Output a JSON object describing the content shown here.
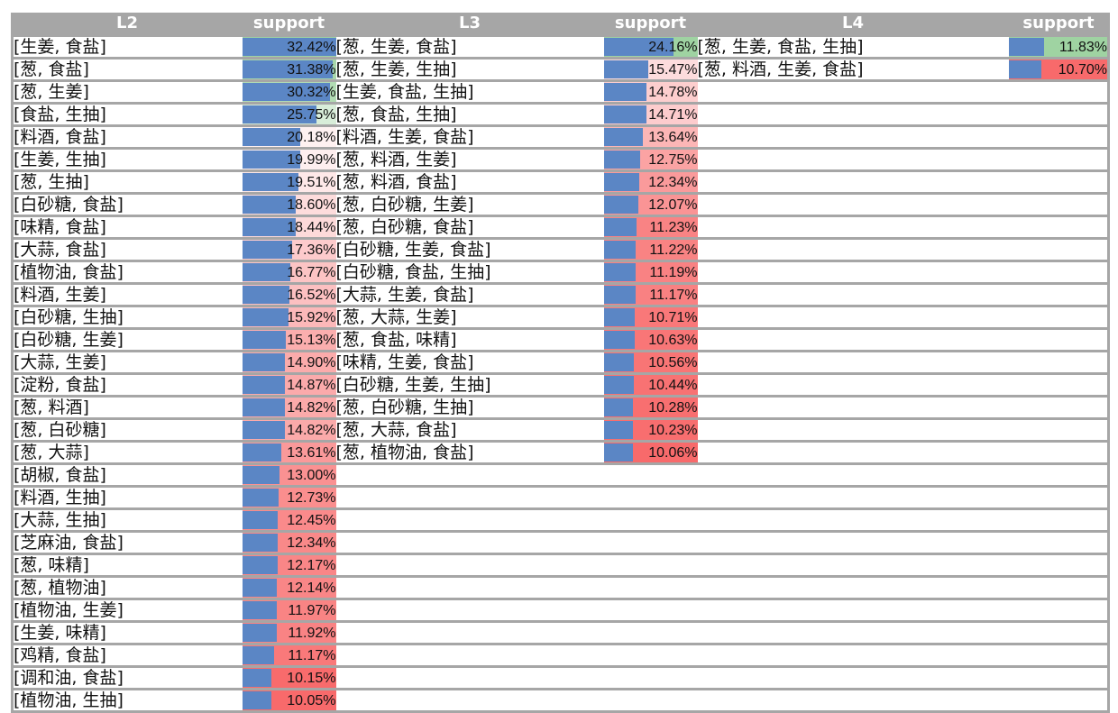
{
  "headers": [
    "L2",
    "support",
    "L3",
    "support",
    "L4",
    "support"
  ],
  "colors": {
    "high": "#9fd3a2",
    "mid": "#ffffff",
    "low": "#f86a6b",
    "bar": "#5b86c5",
    "header_bg": "#a6a6a6",
    "grid": "#a6a6a6"
  },
  "l2": [
    {
      "label": "[生姜, 食盐]",
      "support": "32.42%",
      "value": 32.42
    },
    {
      "label": "[葱, 食盐]",
      "support": "31.38%",
      "value": 31.38
    },
    {
      "label": "[葱, 生姜]",
      "support": "30.32%",
      "value": 30.32
    },
    {
      "label": "[食盐, 生抽]",
      "support": "25.75%",
      "value": 25.75
    },
    {
      "label": "[料酒, 食盐]",
      "support": "20.18%",
      "value": 20.18
    },
    {
      "label": "[生姜, 生抽]",
      "support": "19.99%",
      "value": 19.99
    },
    {
      "label": "[葱, 生抽]",
      "support": "19.51%",
      "value": 19.51
    },
    {
      "label": "[白砂糖, 食盐]",
      "support": "18.60%",
      "value": 18.6
    },
    {
      "label": "[味精, 食盐]",
      "support": "18.44%",
      "value": 18.44
    },
    {
      "label": "[大蒜, 食盐]",
      "support": "17.36%",
      "value": 17.36
    },
    {
      "label": "[植物油, 食盐]",
      "support": "16.77%",
      "value": 16.77
    },
    {
      "label": "[料酒, 生姜]",
      "support": "16.52%",
      "value": 16.52
    },
    {
      "label": "[白砂糖, 生抽]",
      "support": "15.92%",
      "value": 15.92
    },
    {
      "label": "[白砂糖, 生姜]",
      "support": "15.13%",
      "value": 15.13
    },
    {
      "label": "[大蒜, 生姜]",
      "support": "14.90%",
      "value": 14.9
    },
    {
      "label": "[淀粉, 食盐]",
      "support": "14.87%",
      "value": 14.87
    },
    {
      "label": "[葱, 料酒]",
      "support": "14.82%",
      "value": 14.82
    },
    {
      "label": "[葱, 白砂糖]",
      "support": "14.82%",
      "value": 14.82
    },
    {
      "label": "[葱, 大蒜]",
      "support": "13.61%",
      "value": 13.61
    },
    {
      "label": "[胡椒, 食盐]",
      "support": "13.00%",
      "value": 13.0
    },
    {
      "label": "[料酒, 生抽]",
      "support": "12.73%",
      "value": 12.73
    },
    {
      "label": "[大蒜, 生抽]",
      "support": "12.45%",
      "value": 12.45
    },
    {
      "label": "[芝麻油, 食盐]",
      "support": "12.34%",
      "value": 12.34
    },
    {
      "label": "[葱, 味精]",
      "support": "12.17%",
      "value": 12.17
    },
    {
      "label": "[葱, 植物油]",
      "support": "12.14%",
      "value": 12.14
    },
    {
      "label": "[植物油, 生姜]",
      "support": "11.97%",
      "value": 11.97
    },
    {
      "label": "[生姜, 味精]",
      "support": "11.92%",
      "value": 11.92
    },
    {
      "label": "[鸡精, 食盐]",
      "support": "11.17%",
      "value": 11.17
    },
    {
      "label": "[调和油, 食盐]",
      "support": "10.15%",
      "value": 10.15
    },
    {
      "label": "[植物油, 生抽]",
      "support": "10.05%",
      "value": 10.05
    }
  ],
  "l3": [
    {
      "label": "[葱, 生姜, 食盐]",
      "support": "24.16%",
      "value": 24.16
    },
    {
      "label": "[葱, 生姜, 生抽]",
      "support": "15.47%",
      "value": 15.47
    },
    {
      "label": "[生姜, 食盐, 生抽]",
      "support": "14.78%",
      "value": 14.78
    },
    {
      "label": "[葱, 食盐, 生抽]",
      "support": "14.71%",
      "value": 14.71
    },
    {
      "label": "[料酒, 生姜, 食盐]",
      "support": "13.64%",
      "value": 13.64
    },
    {
      "label": "[葱, 料酒, 生姜]",
      "support": "12.75%",
      "value": 12.75
    },
    {
      "label": "[葱, 料酒, 食盐]",
      "support": "12.34%",
      "value": 12.34
    },
    {
      "label": "[葱, 白砂糖, 生姜]",
      "support": "12.07%",
      "value": 12.07
    },
    {
      "label": "[葱, 白砂糖, 食盐]",
      "support": "11.23%",
      "value": 11.23
    },
    {
      "label": "[白砂糖, 生姜, 食盐]",
      "support": "11.22%",
      "value": 11.22
    },
    {
      "label": "[白砂糖, 食盐, 生抽]",
      "support": "11.19%",
      "value": 11.19
    },
    {
      "label": "[大蒜, 生姜, 食盐]",
      "support": "11.17%",
      "value": 11.17
    },
    {
      "label": "[葱, 大蒜, 生姜]",
      "support": "10.71%",
      "value": 10.71
    },
    {
      "label": "[葱, 食盐, 味精]",
      "support": "10.63%",
      "value": 10.63
    },
    {
      "label": "[味精, 生姜, 食盐]",
      "support": "10.56%",
      "value": 10.56
    },
    {
      "label": "[白砂糖, 生姜, 生抽]",
      "support": "10.44%",
      "value": 10.44
    },
    {
      "label": "[葱, 白砂糖, 生抽]",
      "support": "10.28%",
      "value": 10.28
    },
    {
      "label": "[葱, 大蒜, 食盐]",
      "support": "10.23%",
      "value": 10.23
    },
    {
      "label": "[葱, 植物油, 食盐]",
      "support": "10.06%",
      "value": 10.06
    }
  ],
  "l4": [
    {
      "label": "[葱, 生姜, 食盐, 生抽]",
      "support": "11.83%",
      "value": 11.83
    },
    {
      "label": "[葱, 料酒, 生姜, 食盐]",
      "support": "10.70%",
      "value": 10.7
    }
  ]
}
